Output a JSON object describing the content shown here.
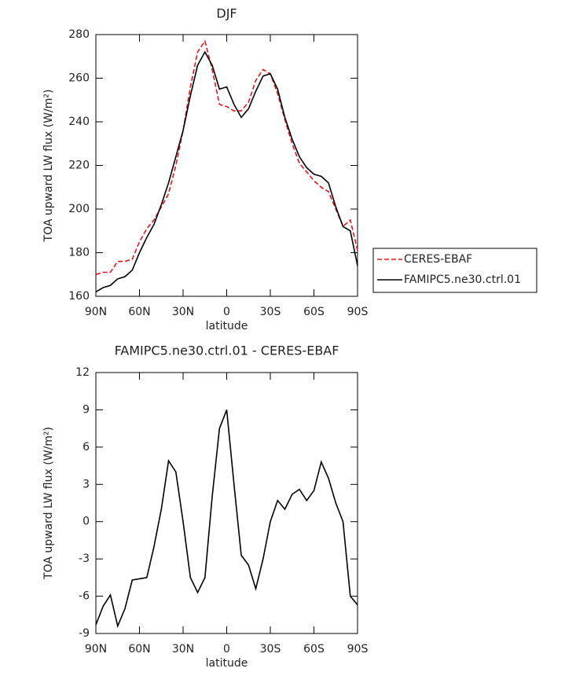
{
  "chart_data": [
    {
      "type": "line",
      "title": "DJF",
      "xlabel": "latitude",
      "ylabel": "TOA upward LW flux (W/m²)",
      "x": [
        90,
        85,
        80,
        75,
        70,
        65,
        60,
        55,
        50,
        45,
        40,
        35,
        30,
        25,
        20,
        15,
        10,
        5,
        0,
        -5,
        -10,
        -15,
        -20,
        -25,
        -30,
        -35,
        -40,
        -45,
        -50,
        -55,
        -60,
        -65,
        -70,
        -75,
        -80,
        -85,
        -90
      ],
      "series": [
        {
          "name": "CERES-EBAF",
          "color": "#e8141b",
          "dash": true,
          "values": [
            170,
            171,
            171,
            176,
            176,
            177,
            185,
            191,
            195,
            201,
            207,
            220,
            236,
            256,
            272,
            277,
            264,
            248,
            247,
            245,
            245,
            249,
            259,
            264,
            262,
            253,
            241,
            230,
            221,
            217,
            213,
            210,
            208,
            200,
            192,
            195,
            181
          ]
        },
        {
          "name": "FAMIPC5.ne30.ctrl.01",
          "color": "#000000",
          "dash": false,
          "values": [
            162,
            164,
            165,
            168,
            169,
            172,
            180,
            187,
            193,
            202,
            212,
            224,
            236,
            252,
            266,
            272,
            266,
            255,
            256,
            248,
            242,
            246,
            254,
            261,
            262,
            255,
            242,
            232,
            224,
            219,
            216,
            215,
            212,
            201,
            192,
            190,
            174
          ]
        }
      ],
      "xlim": [
        90,
        -90
      ],
      "xticks": [
        {
          "value": 90,
          "label": "90N"
        },
        {
          "value": 60,
          "label": "60N"
        },
        {
          "value": 30,
          "label": "30N"
        },
        0,
        {
          "value": -30,
          "label": "30S"
        },
        {
          "value": -60,
          "label": "60S"
        },
        {
          "value": -90,
          "label": "90S"
        }
      ],
      "ylim": [
        160,
        280
      ],
      "yticks": [
        160,
        180,
        200,
        220,
        240,
        260,
        280
      ],
      "legend": "right"
    },
    {
      "type": "line",
      "title": "FAMIPC5.ne30.ctrl.01 - CERES-EBAF",
      "xlabel": "latitude",
      "ylabel": "TOA upward LW flux (W/m²)",
      "x": [
        90,
        85,
        80,
        75,
        70,
        65,
        60,
        55,
        50,
        45,
        40,
        35,
        30,
        25,
        20,
        15,
        10,
        5,
        0,
        -5,
        -10,
        -15,
        -20,
        -25,
        -30,
        -35,
        -40,
        -45,
        -50,
        -55,
        -60,
        -65,
        -70,
        -75,
        -80,
        -85,
        -90
      ],
      "values": [
        -8.3,
        -6.8,
        -5.9,
        -8.4,
        -7,
        -4.7,
        -4.6,
        -4.5,
        -2,
        1,
        4.9,
        4,
        0,
        -4.5,
        -5.7,
        -4.5,
        2,
        7.5,
        9,
        3,
        -2.7,
        -3.5,
        -5.4,
        -3,
        0,
        1.7,
        1,
        2.2,
        2.6,
        1.7,
        2.5,
        4.8,
        3.5,
        1.5,
        0,
        -6,
        -6.7
      ],
      "color": "#000000",
      "xlim": [
        90,
        -90
      ],
      "xticks": [
        {
          "value": 90,
          "label": "90N"
        },
        {
          "value": 60,
          "label": "60N"
        },
        {
          "value": 30,
          "label": "30N"
        },
        0,
        {
          "value": -30,
          "label": "30S"
        },
        {
          "value": -60,
          "label": "60S"
        },
        {
          "value": -90,
          "label": "90S"
        }
      ],
      "ylim": [
        -9,
        12
      ],
      "yticks": [
        -9,
        -6,
        -3,
        0,
        3,
        6,
        9,
        12
      ]
    }
  ]
}
